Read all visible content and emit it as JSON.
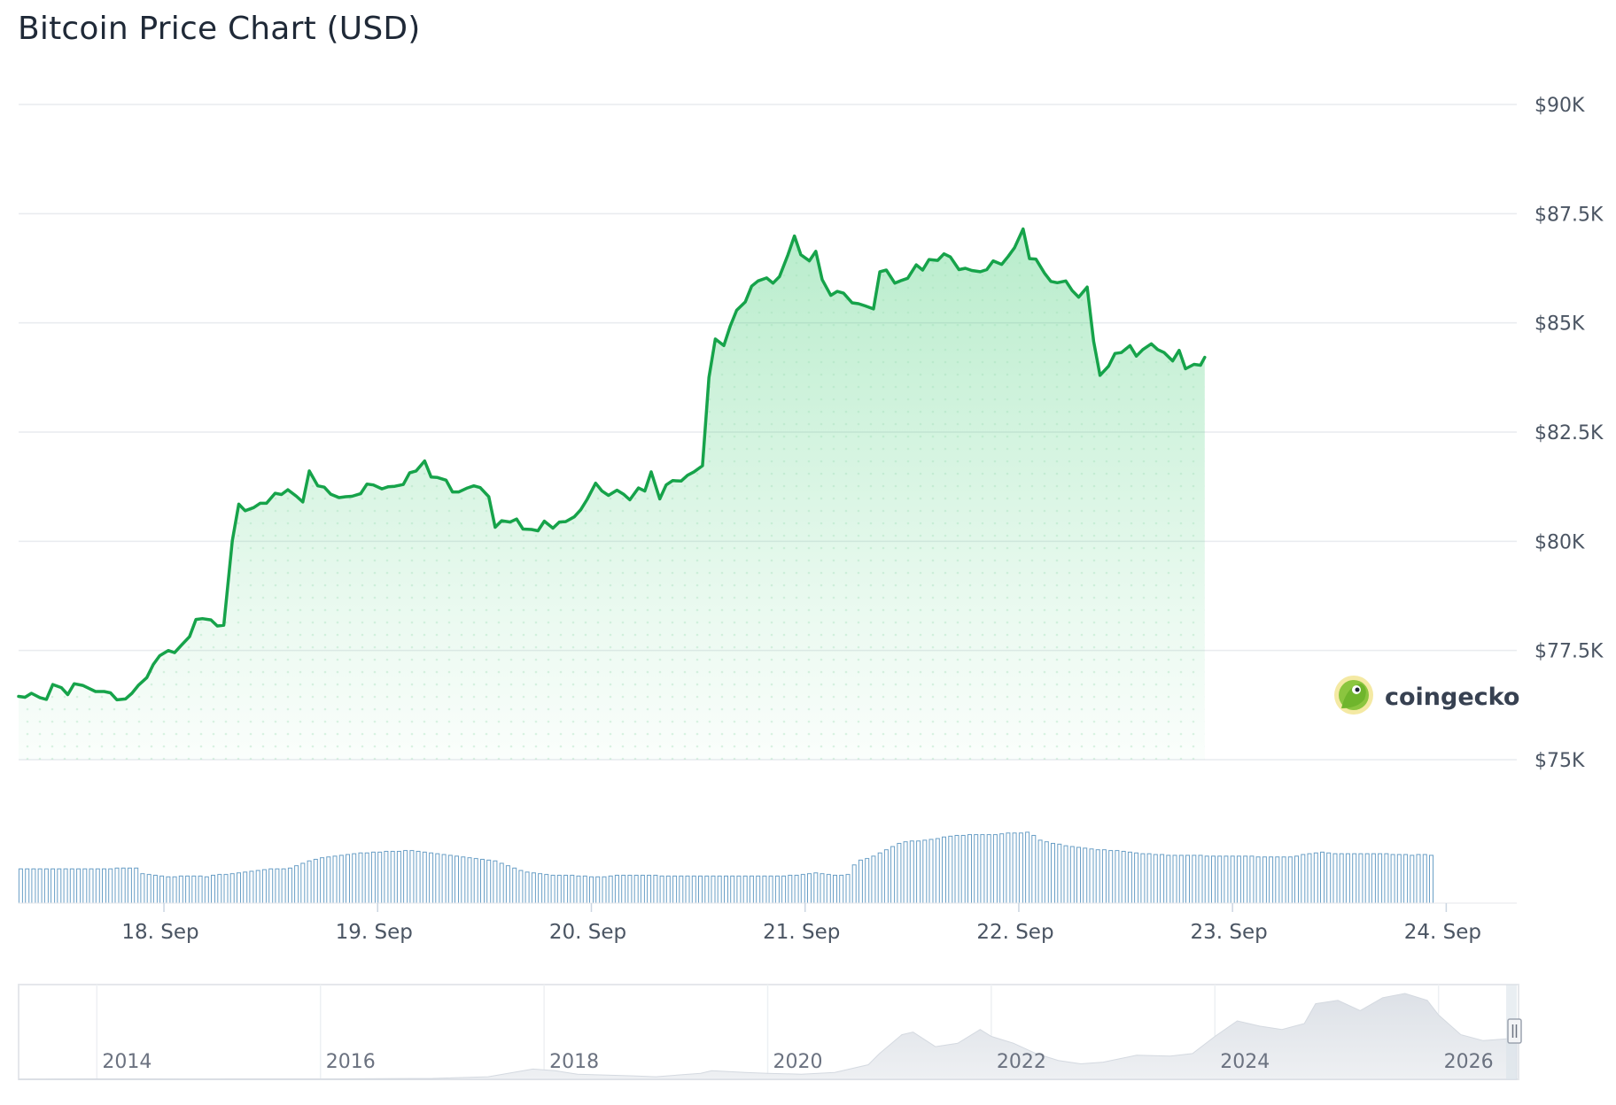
{
  "chart_data": {
    "type": "line",
    "title": "Bitcoin Price Chart (USD)",
    "currency": "USD",
    "y_ticks": [
      "$75K",
      "$77.5K",
      "$80K",
      "$82.5K",
      "$85K",
      "$87.5K",
      "$90K"
    ],
    "y_tick_values": [
      75000,
      77500,
      80000,
      82500,
      85000,
      87500,
      90000
    ],
    "ylim": [
      75000,
      90000
    ],
    "x_ticks": [
      "18. Sep",
      "19. Sep",
      "20. Sep",
      "21. Sep",
      "22. Sep",
      "23. Sep",
      "24. Sep"
    ],
    "x_tick_days": [
      18,
      19,
      20,
      21,
      22,
      23,
      24
    ],
    "xlim_days": [
      17.32,
      24.33
    ],
    "grid": true,
    "line_color": "#16a34a",
    "fill_color": "#22c55e",
    "volume_color": "#6a9fc6",
    "series": [
      {
        "values": [
          [
            17.32,
            76450
          ],
          [
            17.35,
            76430
          ],
          [
            17.38,
            76520
          ],
          [
            17.42,
            76420
          ],
          [
            17.45,
            76380
          ],
          [
            17.48,
            76720
          ],
          [
            17.52,
            76650
          ],
          [
            17.55,
            76490
          ],
          [
            17.58,
            76740
          ],
          [
            17.62,
            76700
          ],
          [
            17.65,
            76630
          ],
          [
            17.68,
            76560
          ],
          [
            17.72,
            76560
          ],
          [
            17.75,
            76530
          ],
          [
            17.78,
            76370
          ],
          [
            17.82,
            76390
          ],
          [
            17.85,
            76520
          ],
          [
            17.88,
            76700
          ],
          [
            17.92,
            76880
          ],
          [
            17.95,
            77180
          ],
          [
            17.98,
            77380
          ],
          [
            18.02,
            77500
          ],
          [
            18.05,
            77450
          ],
          [
            18.08,
            77610
          ],
          [
            18.12,
            77820
          ],
          [
            18.15,
            78210
          ],
          [
            18.18,
            78230
          ],
          [
            18.22,
            78200
          ],
          [
            18.25,
            78060
          ],
          [
            18.28,
            78080
          ],
          [
            18.32,
            80010
          ],
          [
            18.35,
            80850
          ],
          [
            18.38,
            80700
          ],
          [
            18.42,
            80770
          ],
          [
            18.45,
            80870
          ],
          [
            18.48,
            80870
          ],
          [
            18.52,
            81100
          ],
          [
            18.55,
            81070
          ],
          [
            18.58,
            81180
          ],
          [
            18.62,
            81030
          ],
          [
            18.65,
            80900
          ],
          [
            18.68,
            81610
          ],
          [
            18.72,
            81270
          ],
          [
            18.75,
            81240
          ],
          [
            18.78,
            81080
          ],
          [
            18.82,
            81000
          ],
          [
            18.85,
            81020
          ],
          [
            18.88,
            81030
          ],
          [
            18.92,
            81090
          ],
          [
            18.95,
            81310
          ],
          [
            18.98,
            81290
          ],
          [
            19.02,
            81200
          ],
          [
            19.05,
            81250
          ],
          [
            19.08,
            81260
          ],
          [
            19.12,
            81300
          ],
          [
            19.15,
            81570
          ],
          [
            19.18,
            81610
          ],
          [
            19.22,
            81840
          ],
          [
            19.25,
            81470
          ],
          [
            19.28,
            81460
          ],
          [
            19.32,
            81400
          ],
          [
            19.35,
            81130
          ],
          [
            19.38,
            81130
          ],
          [
            19.42,
            81220
          ],
          [
            19.45,
            81270
          ],
          [
            19.48,
            81230
          ],
          [
            19.52,
            81020
          ],
          [
            19.55,
            80320
          ],
          [
            19.58,
            80470
          ],
          [
            19.62,
            80440
          ],
          [
            19.65,
            80510
          ],
          [
            19.68,
            80280
          ],
          [
            19.72,
            80270
          ],
          [
            19.75,
            80240
          ],
          [
            19.78,
            80460
          ],
          [
            19.82,
            80300
          ],
          [
            19.85,
            80440
          ],
          [
            19.88,
            80450
          ],
          [
            19.92,
            80560
          ],
          [
            19.95,
            80720
          ],
          [
            19.98,
            80960
          ],
          [
            20.02,
            81330
          ],
          [
            20.05,
            81150
          ],
          [
            20.08,
            81050
          ],
          [
            20.12,
            81170
          ],
          [
            20.15,
            81080
          ],
          [
            20.18,
            80950
          ],
          [
            20.22,
            81220
          ],
          [
            20.25,
            81150
          ],
          [
            20.28,
            81590
          ],
          [
            20.32,
            80970
          ],
          [
            20.35,
            81290
          ],
          [
            20.38,
            81390
          ],
          [
            20.42,
            81380
          ],
          [
            20.45,
            81510
          ],
          [
            20.48,
            81590
          ],
          [
            20.52,
            81730
          ],
          [
            20.55,
            83750
          ],
          [
            20.58,
            84630
          ],
          [
            20.62,
            84480
          ],
          [
            20.65,
            84930
          ],
          [
            20.68,
            85290
          ],
          [
            20.72,
            85480
          ],
          [
            20.75,
            85840
          ],
          [
            20.78,
            85960
          ],
          [
            20.82,
            86030
          ],
          [
            20.85,
            85910
          ],
          [
            20.88,
            86060
          ],
          [
            20.92,
            86560
          ],
          [
            20.95,
            86990
          ],
          [
            20.98,
            86560
          ],
          [
            21.02,
            86420
          ],
          [
            21.05,
            86640
          ],
          [
            21.08,
            85990
          ],
          [
            21.12,
            85630
          ],
          [
            21.15,
            85720
          ],
          [
            21.18,
            85680
          ],
          [
            21.22,
            85460
          ],
          [
            21.25,
            85440
          ],
          [
            21.28,
            85390
          ],
          [
            21.32,
            85320
          ],
          [
            21.35,
            86170
          ],
          [
            21.38,
            86210
          ],
          [
            21.42,
            85910
          ],
          [
            21.45,
            85970
          ],
          [
            21.48,
            86020
          ],
          [
            21.52,
            86330
          ],
          [
            21.55,
            86210
          ],
          [
            21.58,
            86450
          ],
          [
            21.62,
            86430
          ],
          [
            21.65,
            86580
          ],
          [
            21.68,
            86510
          ],
          [
            21.72,
            86220
          ],
          [
            21.75,
            86250
          ],
          [
            21.78,
            86200
          ],
          [
            21.82,
            86170
          ],
          [
            21.85,
            86220
          ],
          [
            21.88,
            86420
          ],
          [
            21.92,
            86340
          ],
          [
            21.95,
            86520
          ],
          [
            21.98,
            86720
          ],
          [
            22.02,
            87150
          ],
          [
            22.05,
            86470
          ],
          [
            22.08,
            86460
          ],
          [
            22.12,
            86140
          ],
          [
            22.15,
            85950
          ],
          [
            22.18,
            85920
          ],
          [
            22.22,
            85960
          ],
          [
            22.25,
            85740
          ],
          [
            22.28,
            85590
          ],
          [
            22.32,
            85820
          ],
          [
            22.35,
            84580
          ],
          [
            22.38,
            83800
          ],
          [
            22.42,
            84010
          ],
          [
            22.45,
            84300
          ],
          [
            22.48,
            84320
          ],
          [
            22.52,
            84480
          ],
          [
            22.55,
            84240
          ],
          [
            22.58,
            84390
          ],
          [
            22.62,
            84520
          ],
          [
            22.65,
            84390
          ],
          [
            22.68,
            84320
          ],
          [
            22.72,
            84130
          ],
          [
            22.75,
            84370
          ],
          [
            22.78,
            83950
          ],
          [
            22.82,
            84050
          ],
          [
            22.85,
            84030
          ],
          [
            22.87,
            84210
          ]
        ]
      }
    ],
    "volume": {
      "x_start_day": 17.33,
      "x_step_day": 0.03,
      "ylim": [
        0,
        100
      ],
      "values": [
        43,
        43,
        43,
        43,
        43,
        43,
        43,
        43,
        43,
        43,
        43,
        43,
        43,
        43,
        43,
        44,
        44,
        44,
        44,
        37,
        36,
        35,
        34,
        33,
        33,
        34,
        34,
        34,
        34,
        33,
        35,
        36,
        36,
        37,
        38,
        39,
        40,
        41,
        42,
        43,
        43,
        43,
        44,
        47,
        50,
        53,
        55,
        57,
        58,
        59,
        60,
        61,
        62,
        63,
        63,
        64,
        64,
        65,
        65,
        65,
        66,
        66,
        65,
        64,
        63,
        62,
        61,
        60,
        59,
        58,
        57,
        56,
        55,
        54,
        53,
        50,
        47,
        44,
        41,
        39,
        38,
        37,
        36,
        35,
        35,
        35,
        35,
        34,
        34,
        33,
        33,
        33,
        34,
        35,
        35,
        35,
        35,
        35,
        35,
        35,
        34,
        34,
        34,
        34,
        34,
        34,
        34,
        34,
        34,
        34,
        34,
        34,
        34,
        34,
        34,
        34,
        34,
        34,
        34,
        34,
        35,
        35,
        36,
        37,
        38,
        37,
        36,
        35,
        35,
        36,
        48,
        54,
        56,
        59,
        63,
        67,
        71,
        75,
        77,
        78,
        78,
        79,
        80,
        81,
        83,
        84,
        85,
        85,
        86,
        86,
        86,
        86,
        86,
        87,
        88,
        88,
        88,
        89,
        85,
        79,
        77,
        75,
        74,
        72,
        71,
        70,
        69,
        68,
        67,
        67,
        66,
        66,
        65,
        64,
        63,
        62,
        62,
        61,
        61,
        60,
        60,
        60,
        60,
        60,
        60,
        59,
        59,
        59,
        59,
        59,
        59,
        59,
        59,
        58,
        58,
        58,
        58,
        58,
        58,
        59,
        61,
        62,
        63,
        64,
        63,
        62,
        62,
        62,
        62,
        62,
        62,
        62,
        62,
        62,
        61,
        61,
        61,
        60,
        61,
        61,
        60
      ]
    },
    "navigator": {
      "x_ticks": [
        "2014",
        "2016",
        "2018",
        "2020",
        "2022",
        "2024",
        "2026"
      ],
      "x_tick_years": [
        2014,
        2016,
        2018,
        2020,
        2022,
        2024,
        2026
      ],
      "xlim_years": [
        2013.3,
        2026.7
      ],
      "ylim": [
        0,
        100
      ],
      "series": [
        [
          2013.3,
          0
        ],
        [
          2014.0,
          0.5
        ],
        [
          2015.0,
          0.3
        ],
        [
          2016.0,
          0.4
        ],
        [
          2017.0,
          1
        ],
        [
          2017.5,
          3
        ],
        [
          2017.9,
          12
        ],
        [
          2018.1,
          10
        ],
        [
          2018.3,
          6
        ],
        [
          2018.8,
          4
        ],
        [
          2019.0,
          3
        ],
        [
          2019.4,
          7
        ],
        [
          2019.5,
          10
        ],
        [
          2019.8,
          8
        ],
        [
          2020.0,
          7
        ],
        [
          2020.3,
          6
        ],
        [
          2020.6,
          8
        ],
        [
          2020.9,
          17
        ],
        [
          2021.0,
          30
        ],
        [
          2021.2,
          52
        ],
        [
          2021.3,
          55
        ],
        [
          2021.5,
          38
        ],
        [
          2021.7,
          42
        ],
        [
          2021.9,
          58
        ],
        [
          2022.0,
          50
        ],
        [
          2022.2,
          42
        ],
        [
          2022.4,
          30
        ],
        [
          2022.6,
          22
        ],
        [
          2022.8,
          18
        ],
        [
          2023.0,
          20
        ],
        [
          2023.3,
          28
        ],
        [
          2023.6,
          27
        ],
        [
          2023.8,
          30
        ],
        [
          2024.0,
          50
        ],
        [
          2024.2,
          68
        ],
        [
          2024.4,
          62
        ],
        [
          2024.6,
          58
        ],
        [
          2024.8,
          65
        ],
        [
          2024.9,
          88
        ],
        [
          2025.1,
          92
        ],
        [
          2025.3,
          80
        ],
        [
          2025.5,
          95
        ],
        [
          2025.7,
          100
        ],
        [
          2025.9,
          92
        ],
        [
          2026.0,
          75
        ],
        [
          2026.2,
          52
        ],
        [
          2026.4,
          45
        ],
        [
          2026.7,
          48
        ]
      ]
    }
  },
  "brand": {
    "name": "coingecko",
    "logo_icon": "gecko-logo-icon"
  }
}
